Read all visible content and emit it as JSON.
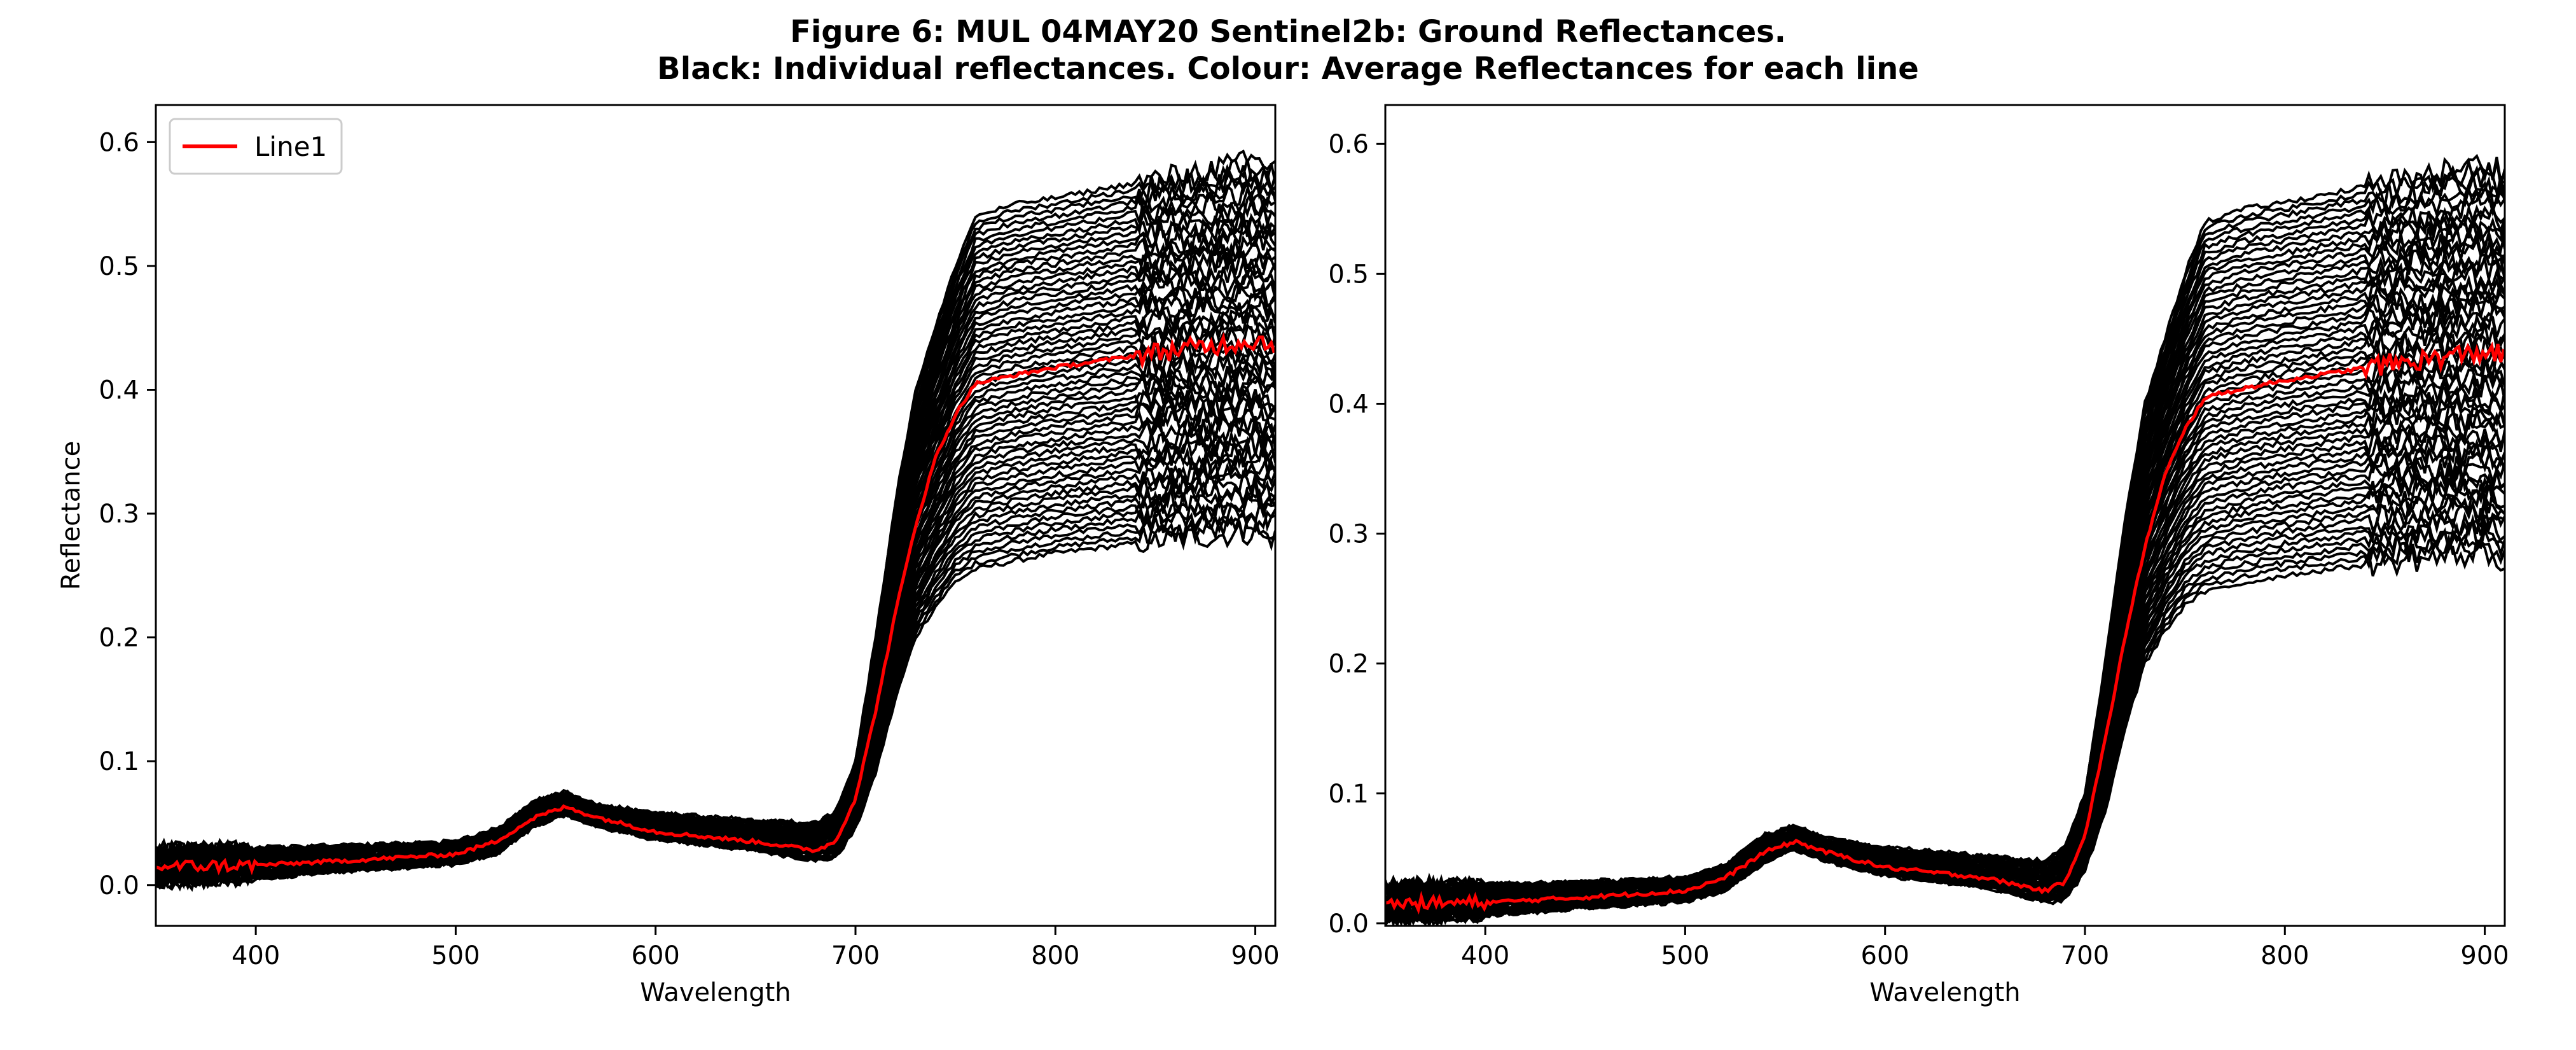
{
  "title_line1": "Figure 6: MUL 04MAY20  Sentinel2b: Ground Reflectances.",
  "title_line2": "Black: Individual reflectances. Colour: Average Reflectances for each line",
  "colors": {
    "individual": "#000000",
    "average": "#ff0000"
  },
  "chart_data": [
    {
      "type": "line",
      "xlabel": "Wavelength",
      "ylabel": "Reflectance",
      "xlim": [
        350,
        910
      ],
      "ylim": [
        -0.033,
        0.63
      ],
      "xticks": [
        400,
        500,
        600,
        700,
        800,
        900
      ],
      "yticks": [
        0.0,
        0.1,
        0.2,
        0.3,
        0.4,
        0.5,
        0.6
      ],
      "ytick_labels": [
        "0.0",
        "0.1",
        "0.2",
        "0.3",
        "0.4",
        "0.5",
        "0.6"
      ],
      "legend": {
        "position": "top-left",
        "entries": [
          "Line1"
        ]
      },
      "series": [
        {
          "name": "Line1",
          "color": "#ff0000",
          "x": [
            350,
            400,
            450,
            500,
            520,
            540,
            555,
            570,
            600,
            650,
            680,
            690,
            700,
            710,
            720,
            730,
            740,
            750,
            760,
            780,
            800,
            850,
            900,
            910
          ],
          "y": [
            0.015,
            0.016,
            0.02,
            0.025,
            0.035,
            0.055,
            0.063,
            0.055,
            0.043,
            0.035,
            0.028,
            0.035,
            0.07,
            0.14,
            0.22,
            0.29,
            0.345,
            0.38,
            0.405,
            0.412,
            0.418,
            0.43,
            0.44,
            0.437
          ]
        }
      ],
      "envelope": {
        "description_values": "individual reflectance spread (min, max)",
        "x": [
          350,
          400,
          450,
          500,
          520,
          540,
          555,
          570,
          600,
          650,
          680,
          690,
          700,
          710,
          720,
          730,
          740,
          750,
          760,
          780,
          800,
          850,
          900,
          910
        ],
        "ymin": [
          0.0,
          0.005,
          0.012,
          0.017,
          0.025,
          0.048,
          0.057,
          0.048,
          0.037,
          0.028,
          0.02,
          0.022,
          0.045,
          0.09,
          0.15,
          0.2,
          0.225,
          0.245,
          0.255,
          0.262,
          0.268,
          0.278,
          0.285,
          0.28
        ],
        "ymax": [
          0.03,
          0.03,
          0.032,
          0.035,
          0.045,
          0.068,
          0.075,
          0.065,
          0.058,
          0.052,
          0.05,
          0.06,
          0.1,
          0.2,
          0.31,
          0.4,
          0.45,
          0.5,
          0.54,
          0.55,
          0.555,
          0.57,
          0.585,
          0.58
        ]
      }
    },
    {
      "type": "line",
      "xlabel": "Wavelength",
      "ylabel": "",
      "xlim": [
        350,
        910
      ],
      "ylim": [
        -0.002,
        0.63
      ],
      "xticks": [
        400,
        500,
        600,
        700,
        800,
        900
      ],
      "yticks": [
        0.0,
        0.1,
        0.2,
        0.3,
        0.4,
        0.5,
        0.6
      ],
      "ytick_labels": [
        "0.0",
        "0.1",
        "0.2",
        "0.3",
        "0.4",
        "0.5",
        "0.6"
      ],
      "series": [
        {
          "color": "#ff0000",
          "x": [
            350,
            400,
            450,
            500,
            520,
            540,
            555,
            570,
            600,
            650,
            680,
            690,
            700,
            710,
            720,
            730,
            740,
            750,
            760,
            780,
            800,
            850,
            900,
            910
          ],
          "y": [
            0.015,
            0.016,
            0.02,
            0.025,
            0.035,
            0.055,
            0.063,
            0.055,
            0.043,
            0.035,
            0.025,
            0.032,
            0.068,
            0.14,
            0.22,
            0.29,
            0.345,
            0.38,
            0.405,
            0.412,
            0.418,
            0.43,
            0.44,
            0.437
          ]
        }
      ],
      "envelope": {
        "x": [
          350,
          400,
          450,
          500,
          520,
          540,
          555,
          570,
          600,
          650,
          680,
          690,
          700,
          710,
          720,
          730,
          740,
          750,
          760,
          780,
          800,
          850,
          900,
          910
        ],
        "ymin": [
          0.002,
          0.006,
          0.012,
          0.017,
          0.025,
          0.048,
          0.057,
          0.048,
          0.037,
          0.028,
          0.016,
          0.018,
          0.04,
          0.085,
          0.15,
          0.2,
          0.225,
          0.245,
          0.255,
          0.262,
          0.268,
          0.278,
          0.285,
          0.28
        ],
        "ymax": [
          0.03,
          0.03,
          0.032,
          0.035,
          0.045,
          0.068,
          0.075,
          0.065,
          0.058,
          0.052,
          0.048,
          0.058,
          0.1,
          0.2,
          0.31,
          0.4,
          0.45,
          0.5,
          0.54,
          0.55,
          0.555,
          0.57,
          0.585,
          0.58
        ]
      }
    }
  ]
}
